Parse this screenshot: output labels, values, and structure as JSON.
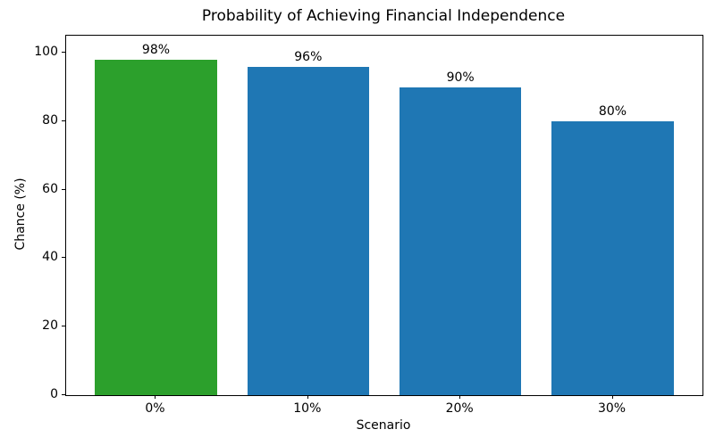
{
  "chart_data": {
    "type": "bar",
    "title": "Probability of Achieving Financial Independence",
    "xlabel": "Scenario",
    "ylabel": "Chance (%)",
    "categories": [
      "0%",
      "10%",
      "20%",
      "30%"
    ],
    "values": [
      98,
      96,
      90,
      80
    ],
    "bar_labels": [
      "98%",
      "96%",
      "90%",
      "80%"
    ],
    "bar_colors": [
      "#2ca02c",
      "#1f77b4",
      "#1f77b4",
      "#1f77b4"
    ],
    "yticks": [
      0,
      20,
      40,
      60,
      80,
      100
    ],
    "ylim": [
      0,
      105
    ],
    "grid": false,
    "legend_position": "none",
    "background_color": "#ffffff",
    "text_color": "#000000"
  }
}
